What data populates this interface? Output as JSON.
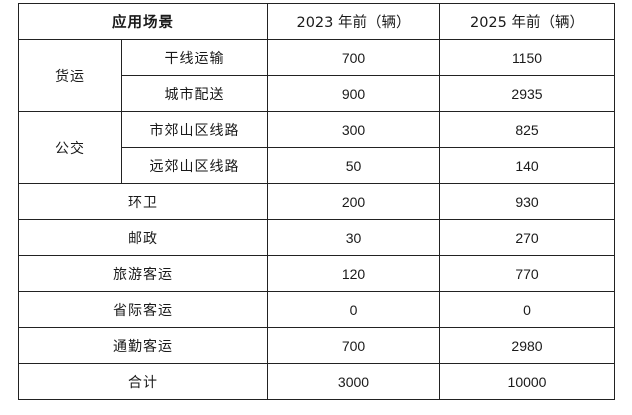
{
  "header": {
    "scene": "应用场景",
    "col2023": "2023 年前（辆）",
    "col2025": "2025 年前（辆）"
  },
  "groups": [
    {
      "name": "货运",
      "rows": [
        {
          "label": "干线运输",
          "v2023": "700",
          "v2025": "1150"
        },
        {
          "label": "城市配送",
          "v2023": "900",
          "v2025": "2935"
        }
      ]
    },
    {
      "name": "公交",
      "rows": [
        {
          "label": "市郊山区线路",
          "v2023": "300",
          "v2025": "825"
        },
        {
          "label": "远郊山区线路",
          "v2023": "50",
          "v2025": "140"
        }
      ]
    }
  ],
  "single_rows": [
    {
      "label": "环卫",
      "v2023": "200",
      "v2025": "930"
    },
    {
      "label": "邮政",
      "v2023": "30",
      "v2025": "270"
    },
    {
      "label": "旅游客运",
      "v2023": "120",
      "v2025": "770"
    },
    {
      "label": "省际客运",
      "v2023": "0",
      "v2025": "0"
    },
    {
      "label": "通勤客运",
      "v2023": "700",
      "v2025": "2980"
    }
  ],
  "total": {
    "label": "合计",
    "v2023": "3000",
    "v2025": "10000"
  }
}
